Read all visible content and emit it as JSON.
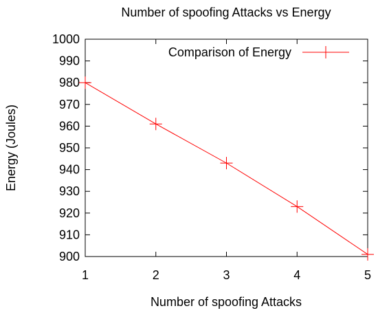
{
  "chart_data": {
    "type": "line",
    "title": "Number of spoofing Attacks vs Energy",
    "xlabel": "Number of spoofing Attacks",
    "ylabel": "Energy (Joules)",
    "xlim": [
      1,
      5
    ],
    "ylim": [
      900,
      1000
    ],
    "xticks": [
      "1",
      "2",
      "3",
      "4",
      "5"
    ],
    "yticks": [
      "900",
      "910",
      "920",
      "930",
      "940",
      "950",
      "960",
      "970",
      "980",
      "990",
      "1000"
    ],
    "grid": false,
    "legend_position": "top-right",
    "series": [
      {
        "name": "Comparison of Energy",
        "color": "#ff0000",
        "marker": "plus",
        "x": [
          1,
          2,
          3,
          4,
          5
        ],
        "y": [
          980,
          961,
          943,
          923,
          901
        ]
      }
    ]
  }
}
